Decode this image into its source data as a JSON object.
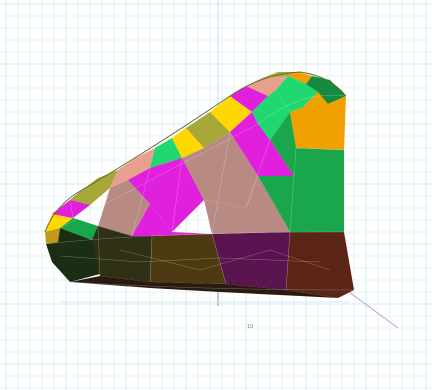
{
  "scene": {
    "background": "#ffffff",
    "grid_minor_color": "#cfeef0",
    "grid_major_color": "#a9dde3",
    "axis_color": "#b7a3d6",
    "tick_label": "10"
  },
  "surface": {
    "palette": {
      "magenta": "#e020dc",
      "yellow": "#ffd800",
      "green": "#20d870",
      "orange": "#f0a000",
      "olive": "#a8a838",
      "pink": "#e8a08e",
      "brown": "#b88a84",
      "dark_green": "#1aa64a",
      "dark_olive": "#2f3014",
      "dark_brown": "#5a2416",
      "dark_purple": "#5a1450",
      "rim_green": "#168a3e"
    }
  }
}
